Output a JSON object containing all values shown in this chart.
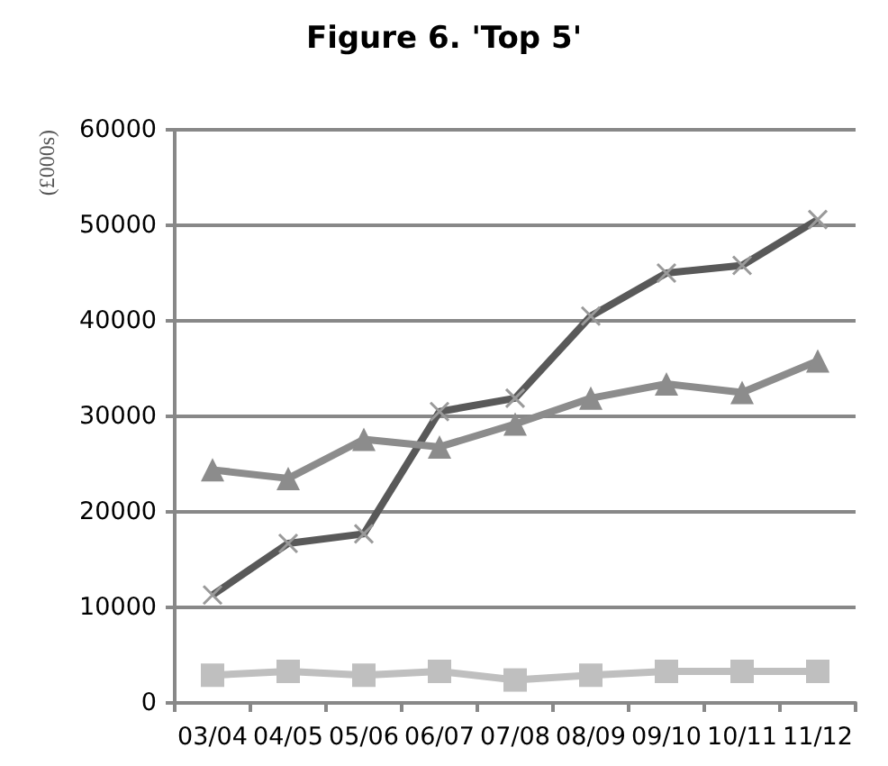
{
  "chart_data": {
    "type": "line",
    "title": "Figure 6. 'Top 5'",
    "ylabel": "(£000s)",
    "categories": [
      "03/04",
      "04/05",
      "05/06",
      "06/07",
      "07/08",
      "08/09",
      "09/10",
      "10/11",
      "11/12"
    ],
    "series": [
      {
        "color": "#595959",
        "marker": "cross",
        "values": [
          11300,
          16700,
          17700,
          30500,
          31900,
          40500,
          45000,
          45800,
          50600
        ]
      },
      {
        "color": "#8c8c8c",
        "marker": "triangle",
        "values": [
          24400,
          23500,
          27600,
          26800,
          29200,
          31900,
          33400,
          32500,
          35800
        ]
      },
      {
        "color": "#bfbfbf",
        "marker": "square",
        "values": [
          2900,
          3300,
          2900,
          3300,
          2400,
          2900,
          3300,
          3300,
          3300
        ]
      }
    ],
    "ylim": [
      0,
      60000
    ],
    "yticks": [
      0,
      10000,
      20000,
      30000,
      40000,
      50000,
      60000
    ],
    "grid": "y"
  }
}
